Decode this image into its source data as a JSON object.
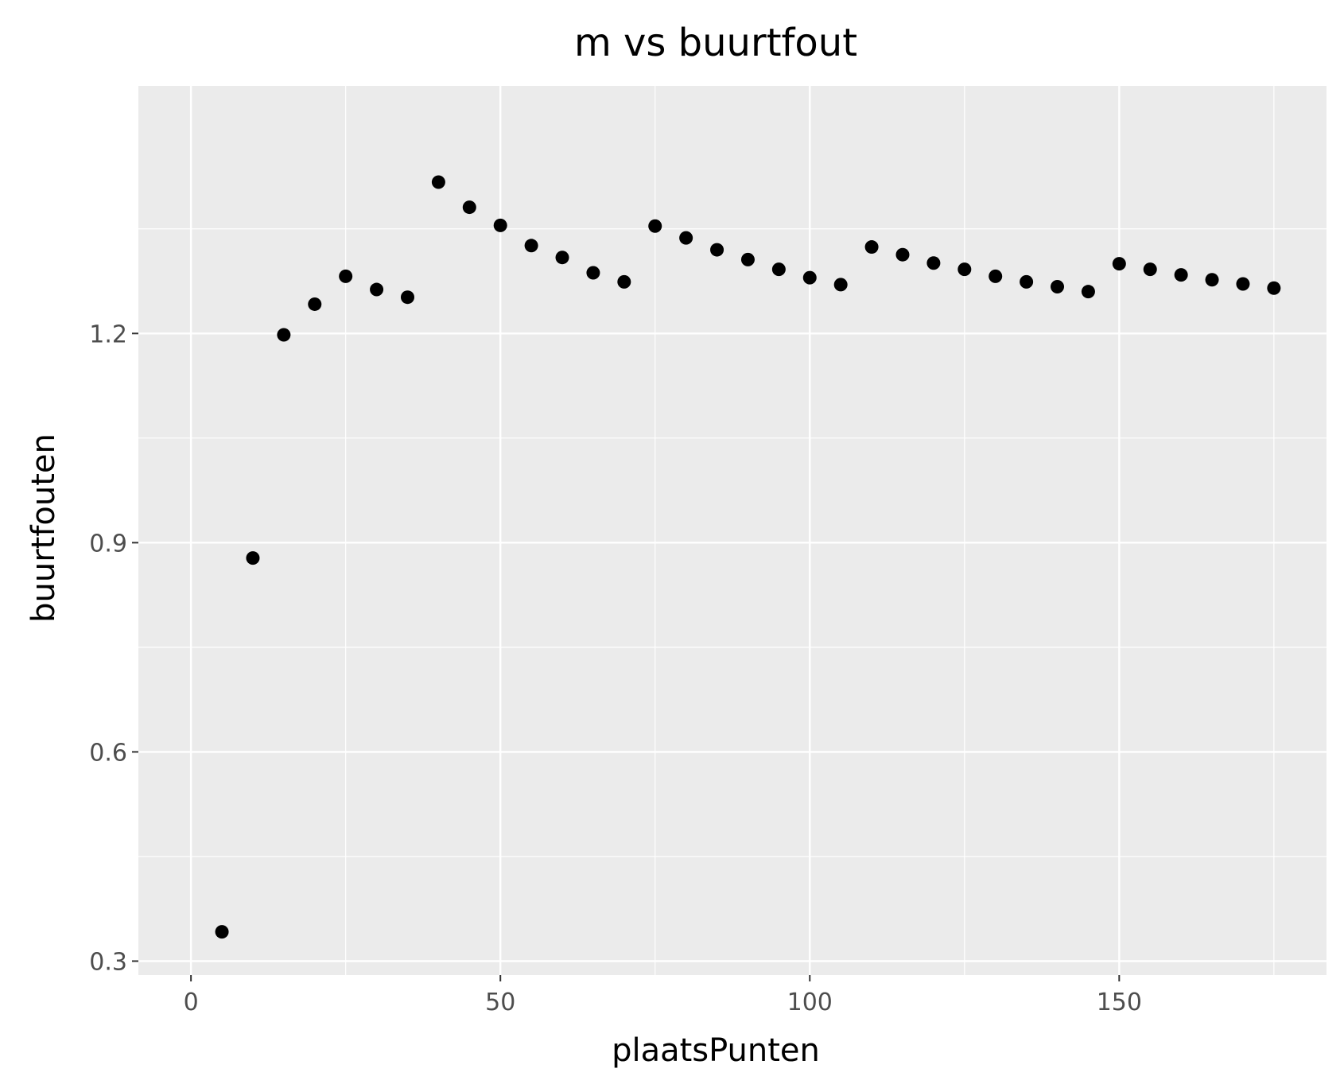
{
  "chart_data": {
    "type": "scatter",
    "title": "m vs buurtfout",
    "xlabel": "plaatsPunten",
    "ylabel": "buurtfouten",
    "xlim": [
      -8.5,
      183.5
    ],
    "ylim": [
      0.28,
      1.555
    ],
    "x_ticks": [
      0,
      50,
      100,
      150
    ],
    "x_tick_labels": [
      "0",
      "50",
      "100",
      "150"
    ],
    "y_ticks": [
      0.3,
      0.6,
      0.9,
      1.2
    ],
    "y_tick_labels": [
      "0.3",
      "0.6",
      "0.9",
      "1.2"
    ],
    "grid": true,
    "panel_background": "#ebebeb",
    "grid_color": "#ffffff",
    "point_color": "#000000",
    "points": [
      {
        "x": 5,
        "y": 0.342
      },
      {
        "x": 10,
        "y": 0.878
      },
      {
        "x": 15,
        "y": 1.198
      },
      {
        "x": 20,
        "y": 1.242
      },
      {
        "x": 25,
        "y": 1.282
      },
      {
        "x": 30,
        "y": 1.263
      },
      {
        "x": 35,
        "y": 1.252
      },
      {
        "x": 40,
        "y": 1.417
      },
      {
        "x": 45,
        "y": 1.381
      },
      {
        "x": 50,
        "y": 1.355
      },
      {
        "x": 55,
        "y": 1.326
      },
      {
        "x": 60,
        "y": 1.309
      },
      {
        "x": 65,
        "y": 1.287
      },
      {
        "x": 70,
        "y": 1.274
      },
      {
        "x": 75,
        "y": 1.354
      },
      {
        "x": 80,
        "y": 1.337
      },
      {
        "x": 85,
        "y": 1.32
      },
      {
        "x": 90,
        "y": 1.306
      },
      {
        "x": 95,
        "y": 1.292
      },
      {
        "x": 100,
        "y": 1.28
      },
      {
        "x": 105,
        "y": 1.27
      },
      {
        "x": 110,
        "y": 1.324
      },
      {
        "x": 115,
        "y": 1.313
      },
      {
        "x": 120,
        "y": 1.301
      },
      {
        "x": 125,
        "y": 1.292
      },
      {
        "x": 130,
        "y": 1.282
      },
      {
        "x": 135,
        "y": 1.274
      },
      {
        "x": 140,
        "y": 1.267
      },
      {
        "x": 145,
        "y": 1.26
      },
      {
        "x": 150,
        "y": 1.3
      },
      {
        "x": 155,
        "y": 1.292
      },
      {
        "x": 160,
        "y": 1.284
      },
      {
        "x": 165,
        "y": 1.277
      },
      {
        "x": 170,
        "y": 1.271
      },
      {
        "x": 175,
        "y": 1.265
      }
    ]
  }
}
